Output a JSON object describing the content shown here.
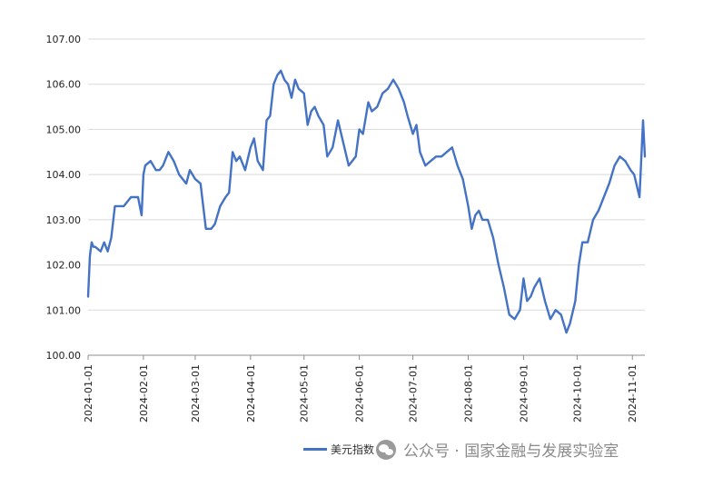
{
  "chart_data": {
    "type": "line",
    "title": "",
    "xlabel": "",
    "ylabel": "",
    "ylim": [
      100.0,
      107.0
    ],
    "y_ticks": [
      "100.00",
      "101.00",
      "102.00",
      "103.00",
      "104.00",
      "105.00",
      "106.00",
      "107.00"
    ],
    "x_ticks": [
      "2024-01-01",
      "2024-02-01",
      "2024-03-01",
      "2024-04-01",
      "2024-05-01",
      "2024-06-01",
      "2024-07-01",
      "2024-08-01",
      "2024-09-01",
      "2024-10-01",
      "2024-11-01"
    ],
    "grid": "horizontal",
    "legend_position": "bottom",
    "series": [
      {
        "name": "美元指数",
        "color": "#4472C4",
        "x": [
          "2024-01-01",
          "2024-01-02",
          "2024-01-03",
          "2024-01-04",
          "2024-01-05",
          "2024-01-08",
          "2024-01-10",
          "2024-01-12",
          "2024-01-14",
          "2024-01-16",
          "2024-01-18",
          "2024-01-21",
          "2024-01-25",
          "2024-01-27",
          "2024-01-29",
          "2024-01-31",
          "2024-02-01",
          "2024-02-02",
          "2024-02-05",
          "2024-02-08",
          "2024-02-10",
          "2024-02-12",
          "2024-02-15",
          "2024-02-18",
          "2024-02-21",
          "2024-02-25",
          "2024-02-27",
          "2024-03-01",
          "2024-03-04",
          "2024-03-07",
          "2024-03-10",
          "2024-03-12",
          "2024-03-15",
          "2024-03-18",
          "2024-03-20",
          "2024-03-22",
          "2024-03-24",
          "2024-03-26",
          "2024-03-29",
          "2024-04-01",
          "2024-04-03",
          "2024-04-05",
          "2024-04-08",
          "2024-04-10",
          "2024-04-12",
          "2024-04-14",
          "2024-04-16",
          "2024-04-18",
          "2024-04-20",
          "2024-04-22",
          "2024-04-24",
          "2024-04-26",
          "2024-04-28",
          "2024-05-01",
          "2024-05-03",
          "2024-05-05",
          "2024-05-07",
          "2024-05-09",
          "2024-05-12",
          "2024-05-14",
          "2024-05-17",
          "2024-05-20",
          "2024-05-23",
          "2024-05-26",
          "2024-05-28",
          "2024-05-30",
          "2024-06-01",
          "2024-06-03",
          "2024-06-06",
          "2024-06-08",
          "2024-06-11",
          "2024-06-14",
          "2024-06-17",
          "2024-06-20",
          "2024-06-23",
          "2024-06-26",
          "2024-06-28",
          "2024-07-01",
          "2024-07-03",
          "2024-07-05",
          "2024-07-08",
          "2024-07-11",
          "2024-07-14",
          "2024-07-17",
          "2024-07-20",
          "2024-07-23",
          "2024-07-26",
          "2024-07-29",
          "2024-08-01",
          "2024-08-03",
          "2024-08-05",
          "2024-08-07",
          "2024-08-09",
          "2024-08-12",
          "2024-08-15",
          "2024-08-18",
          "2024-08-21",
          "2024-08-24",
          "2024-08-27",
          "2024-08-30",
          "2024-09-01",
          "2024-09-03",
          "2024-09-05",
          "2024-09-07",
          "2024-09-10",
          "2024-09-13",
          "2024-09-16",
          "2024-09-19",
          "2024-09-22",
          "2024-09-25",
          "2024-09-27",
          "2024-09-30",
          "2024-10-02",
          "2024-10-04",
          "2024-10-07",
          "2024-10-10",
          "2024-10-13",
          "2024-10-16",
          "2024-10-19",
          "2024-10-22",
          "2024-10-25",
          "2024-10-28",
          "2024-10-31",
          "2024-11-02",
          "2024-11-05",
          "2024-11-07",
          "2024-11-08"
        ],
        "values": [
          101.3,
          102.2,
          102.5,
          102.4,
          102.4,
          102.3,
          102.5,
          102.3,
          102.6,
          103.3,
          103.3,
          103.3,
          103.5,
          103.5,
          103.5,
          103.1,
          104.0,
          104.2,
          104.3,
          104.1,
          104.1,
          104.2,
          104.5,
          104.3,
          104.0,
          103.8,
          104.1,
          103.9,
          103.8,
          102.8,
          102.8,
          102.9,
          103.3,
          103.5,
          103.6,
          104.5,
          104.3,
          104.4,
          104.1,
          104.6,
          104.8,
          104.3,
          104.1,
          105.2,
          105.3,
          106.0,
          106.2,
          106.3,
          106.1,
          106.0,
          105.7,
          106.1,
          105.9,
          105.8,
          105.1,
          105.4,
          105.5,
          105.3,
          105.1,
          104.4,
          104.6,
          105.2,
          104.7,
          104.2,
          104.3,
          104.4,
          105.0,
          104.9,
          105.6,
          105.4,
          105.5,
          105.8,
          105.9,
          106.1,
          105.9,
          105.6,
          105.3,
          104.9,
          105.1,
          104.5,
          104.2,
          104.3,
          104.4,
          104.4,
          104.5,
          104.6,
          104.2,
          103.9,
          103.3,
          102.8,
          103.1,
          103.2,
          103.0,
          103.0,
          102.6,
          102.0,
          101.5,
          100.9,
          100.8,
          101.0,
          101.7,
          101.2,
          101.3,
          101.5,
          101.7,
          101.2,
          100.8,
          101.0,
          100.9,
          100.5,
          100.7,
          101.2,
          102.0,
          102.5,
          102.5,
          103.0,
          103.2,
          103.5,
          103.8,
          104.2,
          104.4,
          104.3,
          104.1,
          104.0,
          103.5,
          105.2,
          104.4
        ]
      }
    ]
  },
  "legend": {
    "label": "美元指数"
  },
  "watermark": {
    "text": "公众号 · 国家金融与发展实验室"
  }
}
